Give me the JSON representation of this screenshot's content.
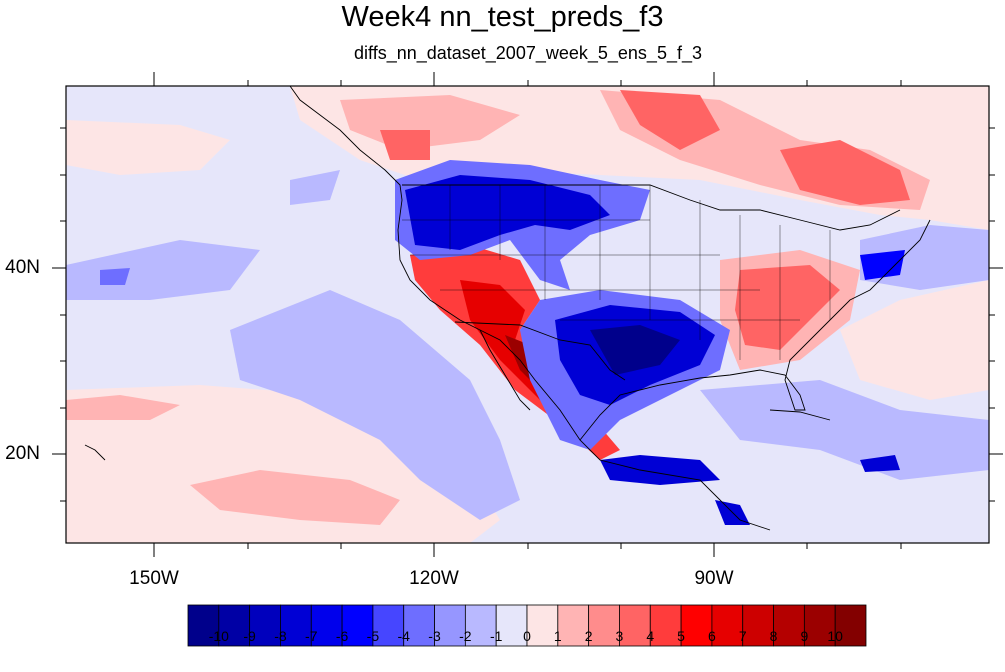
{
  "title": "Week4 nn_test_preds_f3",
  "subtitle": "diffs_nn_dataset_2007_week_5_ens_5_f_3",
  "map": {
    "projection": "cylindrical-equidistant",
    "lon_range": [
      -159.5,
      -61
    ],
    "lat_range": [
      10.5,
      59.5
    ],
    "background_color": "#e6e6fa",
    "lon_labels": [
      "150W",
      "120W",
      "90W"
    ],
    "lat_labels": [
      "40N",
      "20N"
    ],
    "boundaries": "coastlines, US state and Canadian province outlines"
  },
  "regions": [
    {
      "label": "Northwest US negative anomaly",
      "value": -7
    },
    {
      "label": "Southwest US / Baja positive anomaly",
      "value": 8
    },
    {
      "label": "Texas / Gulf negative anomaly",
      "value": -7
    },
    {
      "label": "Southeast US positive anomaly",
      "value": 5
    },
    {
      "label": "Canada positive anomaly",
      "value": 4
    },
    {
      "label": "Northeast negative anomaly",
      "value": -5
    },
    {
      "label": "Subtropical Pacific positive band",
      "value": 2
    },
    {
      "label": "Eastern Pacific negative area",
      "value": -3
    }
  ],
  "colorbar": {
    "labels": [
      "-10",
      "-9",
      "-8",
      "-7",
      "-6",
      "-5",
      "-4",
      "-3",
      "-2",
      "-1",
      "0",
      "1",
      "2",
      "3",
      "4",
      "5",
      "6",
      "7",
      "8",
      "9",
      "10"
    ],
    "colors": [
      "#00008b",
      "#0000a5",
      "#0000bd",
      "#0000d5",
      "#0000ec",
      "#0000ff",
      "#4646ff",
      "#6e6eff",
      "#9696ff",
      "#b9b9ff",
      "#e6e6fa",
      "#fde5e5",
      "#ffb4b4",
      "#ff8c8c",
      "#ff6464",
      "#ff3c3c",
      "#ff0000",
      "#e60000",
      "#cd0000",
      "#b40000",
      "#9b0000",
      "#830000"
    ]
  }
}
